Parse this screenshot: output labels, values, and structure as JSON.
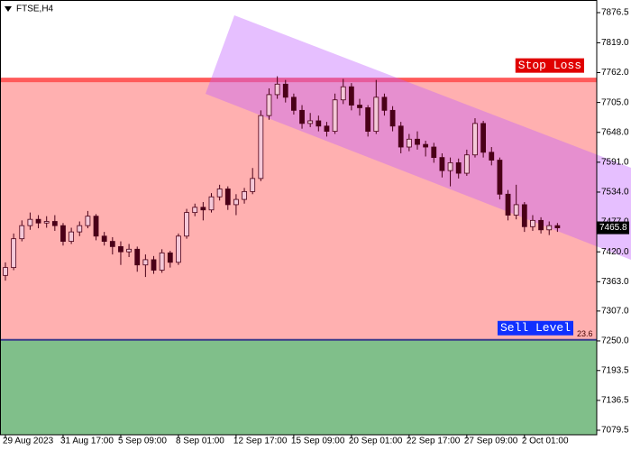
{
  "chart_data": {
    "type": "candlestick",
    "title": "FTSE,H4",
    "categories": [
      "29 Aug 2023",
      null,
      null,
      null,
      null,
      null,
      null,
      "31 Aug 17:00",
      null,
      null,
      null,
      null,
      null,
      null,
      "5 Sep 09:00",
      null,
      null,
      null,
      null,
      null,
      null,
      "8 Sep 01:00",
      null,
      null,
      null,
      null,
      null,
      null,
      "12 Sep 17:00",
      null,
      null,
      null,
      null,
      null,
      null,
      "15 Sep 09:00",
      null,
      null,
      null,
      null,
      null,
      null,
      "20 Sep 01:00",
      null,
      null,
      null,
      null,
      null,
      null,
      "22 Sep 17:00",
      null,
      null,
      null,
      null,
      null,
      null,
      "27 Sep 09:00",
      null,
      null,
      null,
      null,
      null,
      null,
      "2 Oct 01:00",
      null,
      null,
      null,
      null
    ],
    "open": [
      7375,
      7390,
      7445,
      7470,
      7482,
      7475,
      7478,
      7470,
      7440,
      7458,
      7470,
      7488,
      7450,
      7440,
      7430,
      7420,
      7425,
      7395,
      7405,
      7385,
      7418,
      7400,
      7450,
      7495,
      7505,
      7500,
      7525,
      7540,
      7510,
      7520,
      7535,
      7560,
      7680,
      7720,
      7740,
      7715,
      7690,
      7665,
      7670,
      7660,
      7650,
      7710,
      7735,
      7700,
      7695,
      7650,
      7715,
      7690,
      7660,
      7620,
      7635,
      7625,
      7620,
      7600,
      7575,
      7590,
      7570,
      7605,
      7665,
      7610,
      7595,
      7530,
      7490,
      7510,
      7468,
      7480,
      7462,
      7470
    ],
    "high": [
      7400,
      7455,
      7480,
      7495,
      7490,
      7488,
      7490,
      7475,
      7466,
      7478,
      7498,
      7492,
      7458,
      7448,
      7440,
      7435,
      7430,
      7415,
      7412,
      7425,
      7422,
      7455,
      7502,
      7512,
      7515,
      7532,
      7548,
      7545,
      7530,
      7542,
      7580,
      7690,
      7732,
      7755,
      7748,
      7722,
      7700,
      7685,
      7680,
      7668,
      7722,
      7750,
      7742,
      7712,
      7700,
      7748,
      7722,
      7698,
      7668,
      7645,
      7650,
      7632,
      7628,
      7608,
      7600,
      7598,
      7615,
      7675,
      7670,
      7620,
      7600,
      7538,
      7548,
      7515,
      7490,
      7486,
      7478,
      7475
    ],
    "low": [
      7365,
      7385,
      7440,
      7462,
      7465,
      7466,
      7460,
      7432,
      7435,
      7450,
      7465,
      7442,
      7432,
      7415,
      7395,
      7410,
      7382,
      7372,
      7378,
      7380,
      7390,
      7395,
      7445,
      7488,
      7480,
      7495,
      7518,
      7500,
      7490,
      7512,
      7530,
      7555,
      7672,
      7712,
      7705,
      7682,
      7655,
      7658,
      7650,
      7640,
      7645,
      7702,
      7690,
      7680,
      7640,
      7645,
      7680,
      7650,
      7608,
      7612,
      7615,
      7602,
      7590,
      7562,
      7545,
      7560,
      7565,
      7600,
      7600,
      7585,
      7520,
      7480,
      7482,
      7458,
      7460,
      7455,
      7452,
      7458
    ],
    "close": [
      7390,
      7445,
      7470,
      7482,
      7475,
      7478,
      7470,
      7440,
      7458,
      7470,
      7488,
      7450,
      7440,
      7430,
      7420,
      7425,
      7395,
      7405,
      7385,
      7418,
      7400,
      7450,
      7495,
      7505,
      7500,
      7525,
      7540,
      7510,
      7520,
      7535,
      7560,
      7680,
      7720,
      7740,
      7715,
      7690,
      7665,
      7670,
      7660,
      7650,
      7710,
      7735,
      7700,
      7695,
      7650,
      7715,
      7690,
      7660,
      7620,
      7635,
      7625,
      7620,
      7600,
      7575,
      7590,
      7570,
      7605,
      7665,
      7610,
      7595,
      7530,
      7490,
      7510,
      7468,
      7480,
      7462,
      7470,
      7465.8
    ],
    "bull_color": "#f4c8d8",
    "bear_color": "#4a0018",
    "ylim": [
      7070.9,
      7900.6
    ],
    "yticks": [
      7079.5,
      {
        "value": 7136.5,
        "label": "7136.5"
      },
      7193.5,
      {
        "value": 7250,
        "label": "7250.0"
      },
      {
        "value": 7307,
        "label": "7307.0"
      },
      {
        "value": 7363,
        "label": "7363.0"
      },
      {
        "value": 7420,
        "label": "7420.0"
      },
      {
        "value": 7477,
        "label": "7477.0"
      },
      {
        "value": 7534,
        "label": "7534.0"
      },
      {
        "value": 7591,
        "label": "7591.0"
      },
      {
        "value": 7648,
        "label": "7648.0"
      },
      {
        "value": 7705,
        "label": "7705.0"
      },
      {
        "value": 7762,
        "label": "7762.0"
      },
      {
        "value": 7819,
        "label": "7819.0"
      },
      7876.5
    ],
    "current_price": 7465.8,
    "stop_loss": {
      "label": "Stop Loss",
      "value": 7748,
      "color": "#ff5a5a"
    },
    "sell_level": {
      "label": "Sell Level",
      "value": 7252,
      "color": "#3a3a8a"
    },
    "fib_level": 23.6
  }
}
